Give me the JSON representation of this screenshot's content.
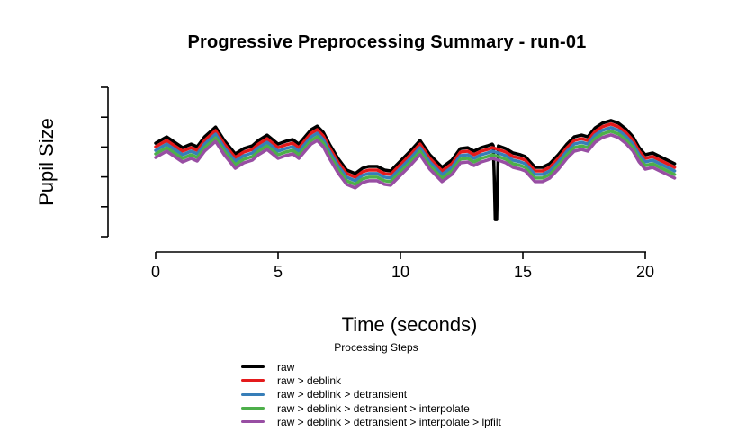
{
  "title": "Progressive Preprocessing Summary - run-01",
  "chart_data": {
    "type": "line",
    "title": "Progressive Preprocessing Summary - run-01",
    "xlabel": "Time (seconds)",
    "ylabel": "Pupil Size",
    "x_ticks": [
      0,
      5,
      10,
      15,
      20
    ],
    "x_range": [
      0,
      21.2
    ],
    "y_axis": {
      "tick_count": 6,
      "tick_labels": "none",
      "units": "arbitrary"
    },
    "y_range_units": [
      0,
      5
    ],
    "grid": false,
    "legend": {
      "title": "Processing Steps",
      "position": "bottom"
    },
    "base_curve": {
      "t": [
        0.0,
        0.45,
        1.1,
        1.45,
        1.7,
        2.0,
        2.45,
        2.8,
        3.25,
        3.6,
        3.95,
        4.2,
        4.55,
        5.0,
        5.3,
        5.6,
        5.85,
        6.1,
        6.35,
        6.6,
        6.85,
        7.1,
        7.45,
        7.8,
        8.15,
        8.45,
        8.7,
        9.05,
        9.35,
        9.6,
        10.0,
        10.4,
        10.8,
        11.2,
        11.7,
        12.1,
        12.45,
        12.75,
        13.0,
        13.3,
        13.55,
        13.75,
        14.0,
        14.3,
        14.6,
        14.9,
        15.1,
        15.5,
        15.8,
        16.1,
        16.45,
        16.8,
        17.1,
        17.4,
        17.65,
        17.95,
        18.25,
        18.6,
        18.9,
        19.2,
        19.5,
        19.75,
        20.0,
        20.3,
        20.6,
        20.9,
        21.2
      ],
      "v": [
        3.13,
        3.34,
        2.98,
        3.1,
        3.01,
        3.34,
        3.67,
        3.22,
        2.77,
        2.95,
        3.04,
        3.22,
        3.4,
        3.1,
        3.19,
        3.25,
        3.1,
        3.34,
        3.58,
        3.7,
        3.49,
        3.1,
        2.62,
        2.23,
        2.11,
        2.29,
        2.35,
        2.35,
        2.23,
        2.2,
        2.53,
        2.86,
        3.22,
        2.74,
        2.32,
        2.56,
        2.95,
        2.98,
        2.86,
        2.98,
        3.04,
        3.1,
        3.04,
        2.95,
        2.8,
        2.74,
        2.68,
        2.32,
        2.32,
        2.44,
        2.74,
        3.1,
        3.34,
        3.4,
        3.34,
        3.64,
        3.8,
        3.89,
        3.8,
        3.61,
        3.34,
        2.98,
        2.74,
        2.8,
        2.68,
        2.56,
        2.44
      ]
    },
    "blink_spike": {
      "series": "raw",
      "t": [
        13.79,
        13.83,
        13.87,
        13.93,
        13.97,
        14.0
      ],
      "v": [
        3.05,
        2.0,
        0.57,
        0.57,
        2.0,
        3.04
      ]
    },
    "series": [
      {
        "name": "raw",
        "color": "#000000",
        "offset_units": 0,
        "has_spike": true
      },
      {
        "name": "raw > deblink",
        "color": "#E41A1C",
        "offset_units": -0.12
      },
      {
        "name": "raw > deblink > detransient",
        "color": "#377EB8",
        "offset_units": -0.24
      },
      {
        "name": "raw > deblink > detransient > interpolate",
        "color": "#4DAF4A",
        "offset_units": -0.36
      },
      {
        "name": "raw > deblink > detransient > interpolate > lpfilt",
        "color": "#984EA3",
        "offset_units": -0.48
      }
    ]
  }
}
